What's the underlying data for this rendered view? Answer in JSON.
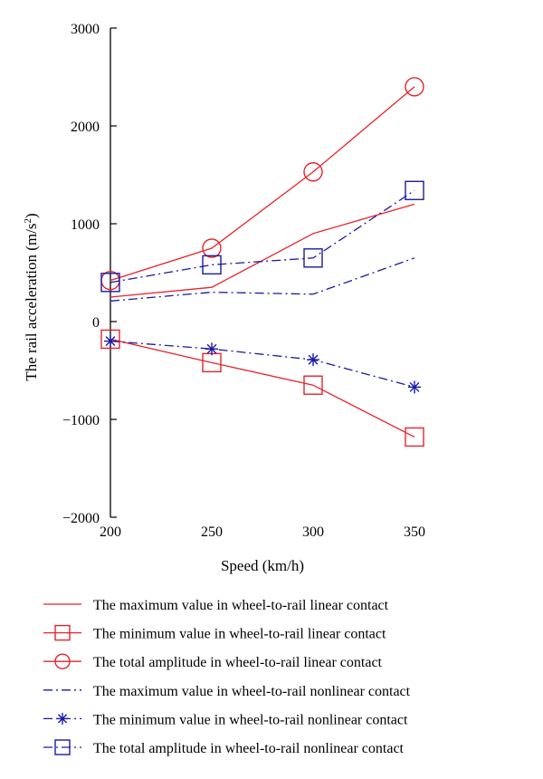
{
  "chart_data": {
    "type": "line",
    "title": "",
    "xlabel": "Speed (km/h)",
    "ylabel": "The rail acceleration (m/s",
    "ylabel_sup": "2",
    "ylabel_tail": ")",
    "x": [
      200,
      250,
      300,
      350
    ],
    "xlim": [
      200,
      350
    ],
    "ylim": [
      -2000,
      3000
    ],
    "xticks": [
      "200",
      "250",
      "300",
      "350"
    ],
    "yticks": [
      "3000",
      "2000",
      "1000",
      "0",
      "−1000",
      "−2000"
    ],
    "ytick_values": [
      3000,
      2000,
      1000,
      0,
      -1000,
      -2000
    ],
    "grid": false,
    "legend_placement": "below",
    "series": [
      {
        "name": "The maximum value in wheel-to-rail linear contact",
        "values": [
          250,
          350,
          900,
          1200
        ],
        "color": "#e8232a",
        "dash": "solid",
        "marker": "none"
      },
      {
        "name": "The minimum value in wheel-to-rail linear contact",
        "values": [
          -180,
          -420,
          -650,
          -1180
        ],
        "color": "#e8232a",
        "dash": "solid",
        "marker": "square"
      },
      {
        "name": "The total amplitude in wheel-to-rail linear contact",
        "values": [
          420,
          750,
          1530,
          2400
        ],
        "color": "#e8232a",
        "dash": "solid",
        "marker": "circle"
      },
      {
        "name": "The maximum value in wheel-to-rail nonlinear contact",
        "values": [
          210,
          300,
          280,
          650
        ],
        "color": "#1a1aa6",
        "dash": "dashdot",
        "marker": "none"
      },
      {
        "name": "The minimum value in wheel-to-rail nonlinear contact",
        "values": [
          -200,
          -280,
          -390,
          -670
        ],
        "color": "#1a1aa6",
        "dash": "dashdot",
        "marker": "star"
      },
      {
        "name": "The total amplitude in wheel-to-rail nonlinear contact",
        "values": [
          400,
          580,
          650,
          1340
        ],
        "color": "#1a1aa6",
        "dash": "dashdot",
        "marker": "square"
      }
    ]
  }
}
